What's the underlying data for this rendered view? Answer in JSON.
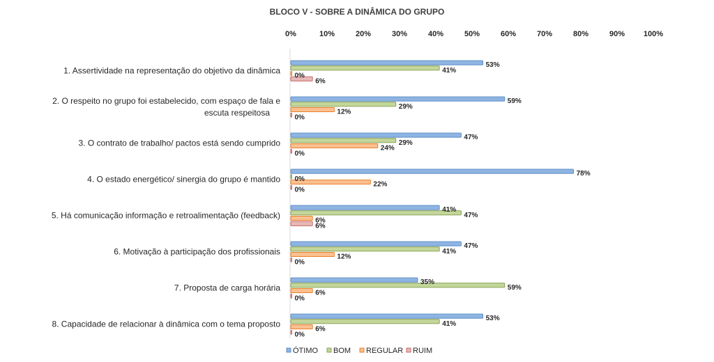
{
  "chart_data": {
    "type": "bar",
    "orientation": "horizontal",
    "title": "BLOCO V - SOBRE A DINÂMICA DO GRUPO",
    "xlim": [
      0,
      100
    ],
    "x_ticks": [
      "0%",
      "10%",
      "20%",
      "30%",
      "40%",
      "50%",
      "60%",
      "70%",
      "80%",
      "90%",
      "100%"
    ],
    "x_axis_position": "top",
    "legend_position": "bottom",
    "categories": [
      [
        "1. Assertividade na representação do objetivo da dinâmica"
      ],
      [
        "2. O respeito no grupo foi estabelecido, com espaço de fala e",
        "escuta respeitosa"
      ],
      [
        "3. O contrato de trabalho/ pactos está sendo cumprido"
      ],
      [
        "4. O estado energético/ sinergia do grupo é mantido"
      ],
      [
        "5. Há comunicação informação e retroalimentação (feedback)"
      ],
      [
        "6. Motivação à participação dos profissionais"
      ],
      [
        "7. Proposta de carga horária"
      ],
      [
        "8. Capacidade de relacionar à dinâmica com o tema proposto"
      ]
    ],
    "series": [
      {
        "name": "ÓTIMO",
        "color": "#8EB4E3",
        "stroke": "#4F81BD",
        "values": [
          53,
          59,
          47,
          78,
          41,
          47,
          35,
          53
        ]
      },
      {
        "name": "BOM",
        "color": "#C3D69B",
        "stroke": "#77933C",
        "values": [
          41,
          29,
          29,
          0,
          47,
          41,
          59,
          41
        ]
      },
      {
        "name": "REGULAR",
        "color": "#FAC090",
        "stroke": "#E46C0A",
        "values": [
          0,
          12,
          24,
          22,
          6,
          12,
          6,
          6
        ]
      },
      {
        "name": "RUIM",
        "color": "#E6B9B8",
        "stroke": "#C0504D",
        "values": [
          6,
          0,
          0,
          0,
          6,
          0,
          0,
          0
        ]
      }
    ],
    "value_suffix": "%"
  }
}
